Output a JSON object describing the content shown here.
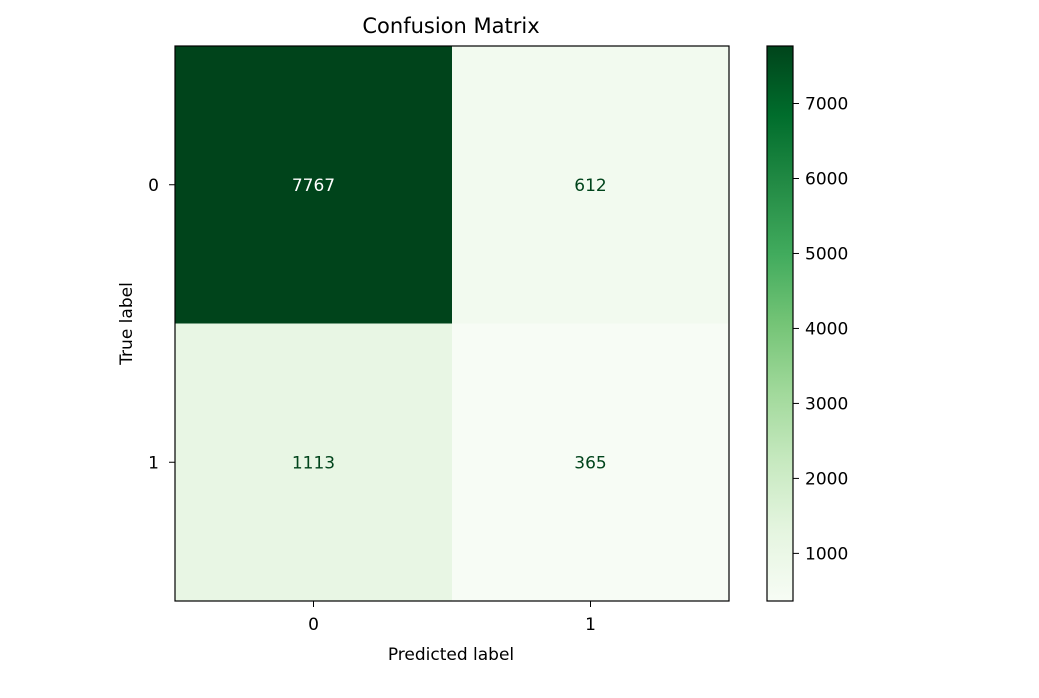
{
  "chart_data": {
    "type": "heatmap",
    "title": "Confusion Matrix",
    "xlabel": "Predicted label",
    "ylabel": "True label",
    "x_categories": [
      "0",
      "1"
    ],
    "y_categories": [
      "0",
      "1"
    ],
    "matrix": [
      [
        7767,
        612
      ],
      [
        1113,
        365
      ]
    ],
    "colormap": "Greens",
    "colorbar": {
      "range": [
        365,
        7767
      ],
      "ticks": [
        1000,
        2000,
        3000,
        4000,
        5000,
        6000,
        7000
      ],
      "tick_labels": [
        "1000",
        "2000",
        "3000",
        "4000",
        "5000",
        "6000",
        "7000"
      ]
    },
    "colors": {
      "low": "#f7fcf5",
      "high": "#00441b",
      "text_on_dark": "#ffffff",
      "text_on_light": "#00441b"
    },
    "grid": false
  }
}
